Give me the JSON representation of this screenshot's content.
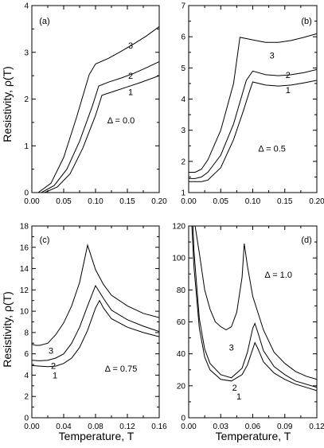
{
  "ylabel": "Resistivity,  ρ(T)",
  "xlabel": "Temperature,  T",
  "chart_data": [
    {
      "type": "line",
      "panel": "(a)",
      "annotation": "Δ = 0.0",
      "xlim": [
        0,
        0.2
      ],
      "ylim": [
        0,
        4
      ],
      "xticks": [
        "0.00",
        "0.05",
        "0.10",
        "0.15",
        "0.20"
      ],
      "yticks": [
        "0",
        "1",
        "2",
        "3",
        "4"
      ],
      "show_xticklabels": true,
      "series": [
        {
          "name": "1",
          "x": [
            0,
            0.02,
            0.04,
            0.06,
            0.08,
            0.1,
            0.11,
            0.13,
            0.15,
            0.17,
            0.2
          ],
          "y": [
            0,
            0,
            0.12,
            0.4,
            0.95,
            1.65,
            2.08,
            2.17,
            2.26,
            2.35,
            2.5
          ]
        },
        {
          "name": "2",
          "x": [
            0,
            0.015,
            0.035,
            0.055,
            0.075,
            0.095,
            0.105,
            0.12,
            0.14,
            0.16,
            0.18,
            0.2
          ],
          "y": [
            0,
            0,
            0.15,
            0.5,
            1.1,
            1.85,
            2.28,
            2.36,
            2.45,
            2.55,
            2.67,
            2.8
          ]
        },
        {
          "name": "3",
          "x": [
            0,
            0.01,
            0.03,
            0.05,
            0.07,
            0.09,
            0.1,
            0.12,
            0.14,
            0.16,
            0.18,
            0.2
          ],
          "y": [
            0,
            0,
            0.2,
            0.75,
            1.6,
            2.52,
            2.75,
            2.87,
            3.02,
            3.18,
            3.35,
            3.55
          ]
        }
      ],
      "labels": [
        {
          "text": "1",
          "x": 0.155,
          "y": 2.15
        },
        {
          "text": "2",
          "x": 0.155,
          "y": 2.5
        },
        {
          "text": "3",
          "x": 0.155,
          "y": 3.15
        }
      ]
    },
    {
      "type": "line",
      "panel": "(b)",
      "annotation": "Δ = 0.5",
      "xlim": [
        0,
        0.2
      ],
      "ylim": [
        1,
        7
      ],
      "xticks": [
        "0.00",
        "0.05",
        "0.10",
        "0.15",
        "0.20"
      ],
      "yticks": [
        "1",
        "2",
        "3",
        "4",
        "5",
        "6",
        "7"
      ],
      "show_xticklabels": true,
      "series": [
        {
          "name": "1",
          "x": [
            0,
            0.01,
            0.02,
            0.03,
            0.05,
            0.07,
            0.085,
            0.095,
            0.1,
            0.12,
            0.14,
            0.16,
            0.18,
            0.2
          ],
          "y": [
            1.35,
            1.35,
            1.35,
            1.4,
            1.8,
            2.7,
            3.6,
            4.25,
            4.55,
            4.45,
            4.42,
            4.45,
            4.52,
            4.6
          ]
        },
        {
          "name": "2",
          "x": [
            0,
            0.01,
            0.02,
            0.03,
            0.05,
            0.07,
            0.08,
            0.09,
            0.1,
            0.12,
            0.14,
            0.16,
            0.18,
            0.2
          ],
          "y": [
            1.45,
            1.45,
            1.5,
            1.65,
            2.2,
            3.2,
            3.9,
            4.6,
            4.9,
            4.78,
            4.75,
            4.78,
            4.85,
            4.95
          ]
        },
        {
          "name": "3",
          "x": [
            0,
            0.01,
            0.02,
            0.03,
            0.05,
            0.07,
            0.08,
            0.1,
            0.12,
            0.14,
            0.16,
            0.18,
            0.2
          ],
          "y": [
            1.65,
            1.65,
            1.75,
            2.05,
            3.0,
            4.5,
            5.98,
            5.9,
            5.82,
            5.82,
            5.88,
            5.98,
            6.1
          ]
        }
      ],
      "labels": [
        {
          "text": "1",
          "x": 0.155,
          "y": 4.3
        },
        {
          "text": "2",
          "x": 0.155,
          "y": 4.78
        },
        {
          "text": "3",
          "x": 0.13,
          "y": 5.4
        }
      ]
    },
    {
      "type": "line",
      "panel": "(c)",
      "annotation": "Δ = 0.75",
      "xlim": [
        0,
        0.16
      ],
      "ylim": [
        0,
        18
      ],
      "xticks": [
        "0.00",
        "0.04",
        "0.08",
        "0.12",
        "0.16"
      ],
      "yticks": [
        "0",
        "2",
        "4",
        "6",
        "8",
        "10",
        "12",
        "14",
        "16",
        "18"
      ],
      "show_xticklabels": true,
      "series": [
        {
          "name": "1",
          "x": [
            0,
            0.01,
            0.02,
            0.03,
            0.04,
            0.05,
            0.06,
            0.07,
            0.08,
            0.085,
            0.09,
            0.1,
            0.12,
            0.14,
            0.16
          ],
          "y": [
            4.9,
            4.85,
            4.8,
            4.85,
            5.1,
            5.6,
            6.6,
            8.2,
            10.3,
            11.0,
            10.3,
            9.3,
            8.5,
            8.0,
            7.6
          ]
        },
        {
          "name": "2",
          "x": [
            0,
            0.01,
            0.02,
            0.03,
            0.04,
            0.05,
            0.06,
            0.07,
            0.08,
            0.09,
            0.1,
            0.12,
            0.14,
            0.16
          ],
          "y": [
            5.4,
            5.35,
            5.4,
            5.6,
            6.0,
            7.0,
            8.5,
            10.5,
            12.4,
            11.2,
            10.1,
            9.2,
            8.6,
            8.1
          ]
        },
        {
          "name": "3",
          "x": [
            0,
            0.005,
            0.01,
            0.02,
            0.03,
            0.04,
            0.05,
            0.06,
            0.07,
            0.08,
            0.09,
            0.1,
            0.12,
            0.14,
            0.16
          ],
          "y": [
            6.9,
            6.8,
            6.8,
            7.0,
            7.8,
            8.9,
            10.5,
            12.7,
            16.2,
            13.9,
            12.5,
            11.5,
            10.5,
            9.8,
            9.4
          ]
        }
      ],
      "labels": [
        {
          "text": "1",
          "x": 0.029,
          "y": 4.0
        },
        {
          "text": "2",
          "x": 0.027,
          "y": 4.9
        },
        {
          "text": "3",
          "x": 0.024,
          "y": 6.3
        }
      ]
    },
    {
      "type": "line",
      "panel": "(d)",
      "annotation": "Δ = 1.0",
      "xlim": [
        0,
        0.12
      ],
      "ylim": [
        0,
        120
      ],
      "xticks": [
        "0.00",
        "0.03",
        "0.06",
        "0.09",
        "0.12"
      ],
      "yticks": [
        "0",
        "20",
        "40",
        "60",
        "80",
        "100",
        "120"
      ],
      "show_xticklabels": true,
      "series": [
        {
          "name": "1",
          "x": [
            0.003,
            0.005,
            0.01,
            0.015,
            0.02,
            0.03,
            0.04,
            0.05,
            0.055,
            0.062,
            0.065,
            0.07,
            0.08,
            0.09,
            0.1,
            0.11,
            0.12
          ],
          "y": [
            120,
            94,
            56,
            38,
            30,
            24,
            23,
            27,
            33,
            47,
            43,
            35,
            28,
            24,
            21,
            19,
            17
          ]
        },
        {
          "name": "2",
          "x": [
            0.004,
            0.005,
            0.01,
            0.015,
            0.02,
            0.03,
            0.04,
            0.05,
            0.055,
            0.06,
            0.062,
            0.065,
            0.07,
            0.08,
            0.09,
            0.1,
            0.11,
            0.12
          ],
          "y": [
            120,
            104,
            62,
            43,
            34,
            27,
            25,
            31,
            41,
            56,
            59,
            53,
            42,
            32,
            27,
            23,
            21,
            19
          ]
        },
        {
          "name": "3",
          "x": [
            0.006,
            0.01,
            0.015,
            0.02,
            0.025,
            0.03,
            0.035,
            0.04,
            0.045,
            0.05,
            0.052,
            0.055,
            0.06,
            0.07,
            0.08,
            0.09,
            0.1,
            0.11,
            0.12
          ],
          "y": [
            120,
            103,
            80,
            68,
            60,
            57,
            55,
            57,
            66,
            88,
            109,
            95,
            76,
            55,
            41,
            34,
            29,
            26,
            24
          ]
        }
      ],
      "labels": [
        {
          "text": "1",
          "x": 0.047,
          "y": 13.5
        },
        {
          "text": "2",
          "x": 0.043,
          "y": 19
        },
        {
          "text": "3",
          "x": 0.04,
          "y": 44
        }
      ]
    }
  ]
}
